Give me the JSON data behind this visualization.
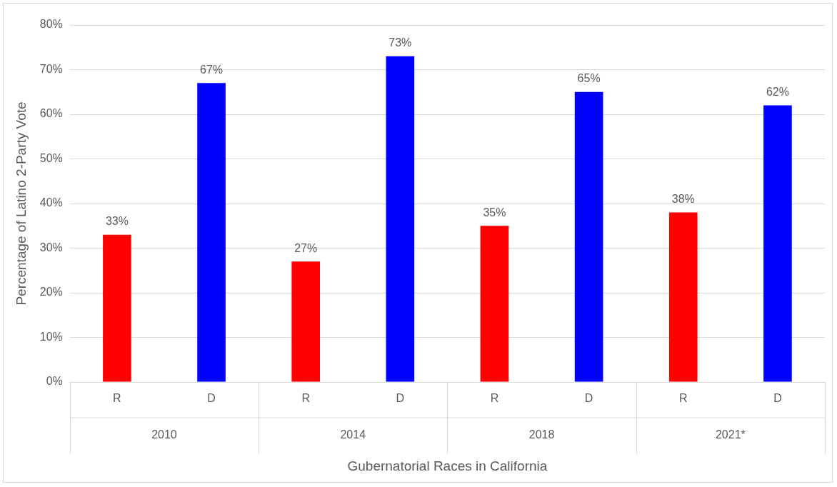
{
  "chart_data": {
    "type": "bar",
    "xlabel": "Gubernatorial Races in California",
    "ylabel": "Percentage of Latino 2-Party Vote",
    "categories": [
      "R",
      "D",
      "R",
      "D",
      "R",
      "D",
      "R",
      "D"
    ],
    "values": [
      33,
      67,
      27,
      73,
      35,
      65,
      38,
      62
    ],
    "colors": [
      "#ff0000",
      "#0000ff",
      "#ff0000",
      "#0000ff",
      "#ff0000",
      "#0000ff",
      "#ff0000",
      "#0000ff"
    ],
    "value_labels": [
      "33%",
      "67%",
      "27%",
      "73%",
      "35%",
      "65%",
      "38%",
      "62%"
    ],
    "annotations": [
      "2010",
      "2014",
      "2018",
      "2021*"
    ],
    "ylim": [
      0,
      80
    ],
    "yticks": [
      {
        "value": 0,
        "label": "0%"
      },
      {
        "value": 10,
        "label": "10%"
      },
      {
        "value": 20,
        "label": "20%"
      },
      {
        "value": 30,
        "label": "30%"
      },
      {
        "value": 40,
        "label": "40%"
      },
      {
        "value": 50,
        "label": "50%"
      },
      {
        "value": 60,
        "label": "60%"
      },
      {
        "value": 70,
        "label": "70%"
      },
      {
        "value": 80,
        "label": "80%"
      }
    ],
    "grid": "y",
    "legend": false
  }
}
